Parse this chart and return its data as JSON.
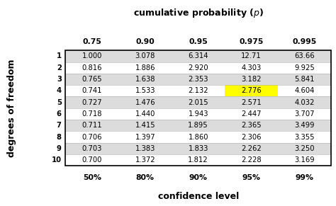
{
  "col_headers": [
    "0.75",
    "0.90",
    "0.95",
    "0.975",
    "0.995"
  ],
  "row_headers": [
    "1",
    "2",
    "3",
    "4",
    "5",
    "6",
    "7",
    "8",
    "9",
    "10"
  ],
  "table_data": [
    [
      "1.000",
      "3.078",
      "6.314",
      "12.71",
      "63.66"
    ],
    [
      "0.816",
      "1.886",
      "2.920",
      "4.303",
      "9.925"
    ],
    [
      "0.765",
      "1.638",
      "2.353",
      "3.182",
      "5.841"
    ],
    [
      "0.741",
      "1.533",
      "2.132",
      "2.776",
      "4.604"
    ],
    [
      "0.727",
      "1.476",
      "2.015",
      "2.571",
      "4.032"
    ],
    [
      "0.718",
      "1.440",
      "1.943",
      "2.447",
      "3.707"
    ],
    [
      "0.711",
      "1.415",
      "1.895",
      "2.365",
      "3.499"
    ],
    [
      "0.706",
      "1.397",
      "1.860",
      "2.306",
      "3.355"
    ],
    [
      "0.703",
      "1.383",
      "1.833",
      "2.262",
      "3.250"
    ],
    [
      "0.700",
      "1.372",
      "1.812",
      "2.228",
      "3.169"
    ]
  ],
  "confidence_labels": [
    "50%",
    "80%",
    "90%",
    "95%",
    "99%"
  ],
  "left_label": "degrees of freedom",
  "bottom_label": "confidence level",
  "top_title": "cumulative probability ($p$)",
  "highlight_row": 3,
  "highlight_col": 3,
  "highlight_color": "#ffff00",
  "row_bg_odd": "#dcdcdc",
  "row_bg_even": "#ffffff",
  "header_color": "#000000",
  "text_color": "#000000",
  "border_color": "#000000",
  "background_color": "#ffffff"
}
